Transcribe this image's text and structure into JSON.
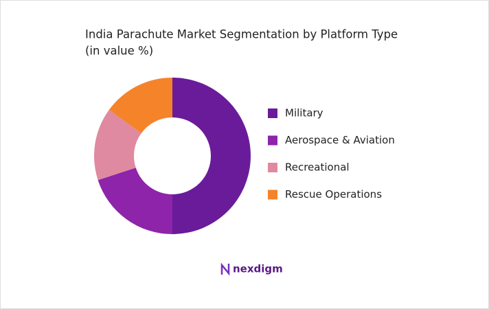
{
  "chart_data": {
    "type": "donut",
    "title": "India Parachute Market Segmentation by Platform Type",
    "subtitle": "(in value %)",
    "categories": [
      "Military",
      "Aerospace & Aviation",
      "Recreational",
      "Rescue Operations"
    ],
    "values": [
      50,
      20,
      15,
      15
    ],
    "colors": [
      "#6a1b9a",
      "#8e24aa",
      "#df8aa0",
      "#f5832a"
    ],
    "legend": "right"
  },
  "logo": "nexdigm"
}
